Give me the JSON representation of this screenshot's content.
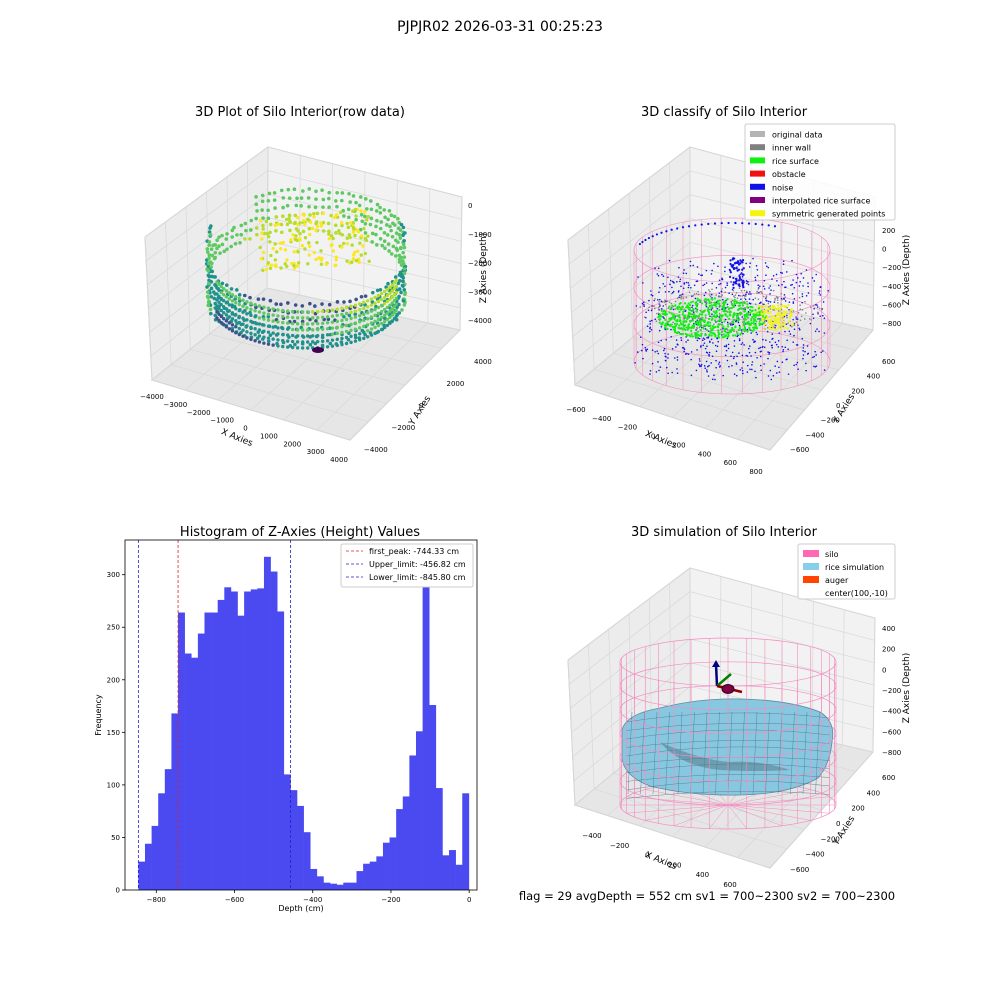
{
  "suptitle": "PJPJR02 2026-03-31 00:25:23",
  "footer": "flag = 29  avgDepth = 552 cm  sv1 = 700~2300  sv2 = 700~2300",
  "colors": {
    "hist": "#4a4af0",
    "first_peak": "#e02020",
    "limit": "#2020d0",
    "silo": "#f48cc0",
    "rice": "#87c8e0",
    "grid": "#d8d8d8",
    "pane": "#f2f2f2"
  },
  "chart_data": [
    {
      "type": "scatter",
      "title": "3D Plot of Silo Interior(row data)",
      "xlabel": "X Axies",
      "ylabel": "Y Axies",
      "zlabel": "Z Axies (Depth)",
      "x_ticks": [
        "−4000",
        "−3000",
        "−2000",
        "−1000",
        "0",
        "1000",
        "2000",
        "3000",
        "4000"
      ],
      "y_ticks": [
        "−4000",
        "−2000",
        "0",
        "2000",
        "4000"
      ],
      "z_ticks": [
        "0",
        "−1000",
        "−2000",
        "−3000",
        "−4000"
      ],
      "xlim": [
        -4000,
        4000
      ],
      "ylim": [
        -4000,
        4000
      ],
      "zlim": [
        -4500,
        0
      ],
      "colormap": "viridis"
    },
    {
      "type": "scatter",
      "title": "3D classify of Silo Interior",
      "xlabel": "X Axies",
      "ylabel": "Y Axies",
      "zlabel": "Z Axies (Depth)",
      "x_ticks": [
        "−600",
        "−400",
        "−200",
        "0",
        "200",
        "400",
        "600",
        "800"
      ],
      "y_ticks": [
        "−600",
        "−400",
        "−200",
        "0",
        "200",
        "400",
        "600"
      ],
      "z_ticks": [
        "200",
        "0",
        "−200",
        "−400",
        "−600",
        "−800"
      ],
      "legend": [
        {
          "label": "original data",
          "color": "#b4b4b4"
        },
        {
          "label": "inner wall",
          "color": "#808080"
        },
        {
          "label": "rice surface",
          "color": "#10f010"
        },
        {
          "label": "obstacle",
          "color": "#f01010"
        },
        {
          "label": "noise",
          "color": "#1010e8"
        },
        {
          "label": "interpolated rice surface",
          "color": "#800080"
        },
        {
          "label": "symmetric generated points",
          "color": "#f4f410"
        }
      ],
      "legend_loc": "top-right"
    },
    {
      "type": "bar",
      "title": "Histogram of Z-Axies (Height) Values",
      "xlabel": "Depth (cm)",
      "ylabel": "Frequency",
      "xlim": [
        -880,
        20
      ],
      "ylim": [
        0,
        333
      ],
      "bin_start": -845.8,
      "bin_width": 16.9,
      "values": [
        27,
        44,
        61,
        92,
        115,
        168,
        264,
        225,
        221,
        244,
        264,
        264,
        276,
        288,
        284,
        261,
        284,
        286,
        287,
        317,
        303,
        265,
        110,
        95,
        80,
        55,
        20,
        13,
        7,
        6,
        5,
        7,
        7,
        18,
        25,
        27,
        32,
        45,
        50,
        77,
        89,
        128,
        151,
        288,
        176,
        97,
        33,
        38,
        24,
        92
      ],
      "x_ticks": [
        -800,
        -600,
        -400,
        -200,
        0
      ],
      "x_tick_labels": [
        "−800",
        "−600",
        "−400",
        "−200",
        "0"
      ],
      "y_ticks": [
        0,
        50,
        100,
        150,
        200,
        250,
        300
      ],
      "y_tick_labels": [
        "0",
        "50",
        "100",
        "150",
        "200",
        "250",
        "300"
      ],
      "vlines": [
        {
          "x": -744.33,
          "label": "first_peak: -744.33 cm",
          "color": "#e02020"
        },
        {
          "x": -456.82,
          "label": "Upper_limit: -456.82 cm",
          "color": "#2020d0"
        },
        {
          "x": -845.8,
          "label": "Lower_limit: -845.80 cm",
          "color": "#2020d0"
        }
      ],
      "legend_loc": "top-right",
      "grid": false
    },
    {
      "type": "scatter",
      "title": "3D simulation of Silo Interior",
      "xlabel": "X Axies",
      "ylabel": "Y Axies",
      "zlabel": "Z Axies (Depth)",
      "x_ticks": [
        "−400",
        "−200",
        "0",
        "200",
        "400",
        "600"
      ],
      "y_ticks": [
        "−600",
        "−400",
        "−200",
        "0",
        "200",
        "400",
        "600"
      ],
      "z_ticks": [
        "400",
        "200",
        "0",
        "−200",
        "−400",
        "−600",
        "−800"
      ],
      "legend": [
        {
          "label": "silo",
          "color": "#ff69b4"
        },
        {
          "label": "rice simulation",
          "color": "#87ceeb"
        },
        {
          "label": "auger",
          "color": "#ff4500"
        },
        {
          "label": "center(100,-10)",
          "color": ""
        }
      ],
      "legend_loc": "top-right"
    }
  ]
}
